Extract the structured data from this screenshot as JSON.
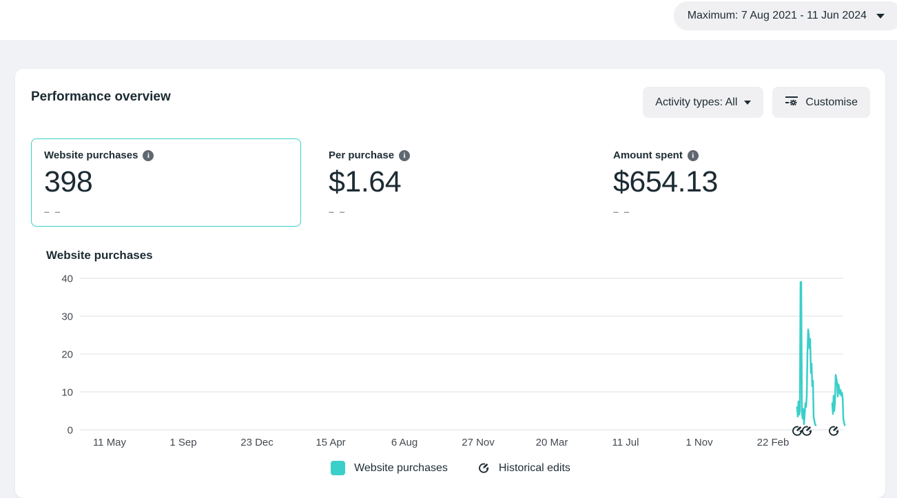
{
  "topbar": {
    "date_range": "Maximum: 7 Aug 2021 - 11 Jun 2024"
  },
  "panel": {
    "title": "Performance overview",
    "activity_types_button": "Activity types: All",
    "customise_button": "Customise"
  },
  "metrics": [
    {
      "label": "Website purchases",
      "value": "398",
      "sub": "– –",
      "selected": true
    },
    {
      "label": "Per purchase",
      "value": "$1.64",
      "sub": "– –",
      "selected": false
    },
    {
      "label": "Amount spent",
      "value": "$654.13",
      "sub": "– –",
      "selected": false
    }
  ],
  "chart_data": {
    "type": "line",
    "title": "Website purchases",
    "xlabel": "",
    "ylabel": "",
    "ylim": [
      0,
      40
    ],
    "yticks": [
      0,
      10,
      20,
      30,
      40
    ],
    "xticklabels": [
      "11 May",
      "1 Sep",
      "23 Dec",
      "15 Apr",
      "6 Aug",
      "27 Nov",
      "20 Mar",
      "11 Jul",
      "1 Nov",
      "22 Feb"
    ],
    "date_range": "7 Aug 2021 - 11 Jun 2024",
    "grid": true,
    "legend_position": "bottom-center",
    "series_name": "Website purchases",
    "colors": {
      "line": "#3acfc9",
      "grid": "#e2e5e9",
      "tick": "#444950"
    },
    "note": "No purchase data before Apr 2024; activity concentrated at far right of range",
    "segments": [
      {
        "x_start": 0.9395,
        "x_step": 0.000903,
        "values": [
          6,
          3.5,
          7.5,
          4,
          5,
          39,
          39,
          4.5,
          3,
          5.5,
          1.5,
          4,
          7,
          6,
          9,
          20,
          26.5,
          25,
          21.5,
          24,
          15,
          17.5,
          11.5,
          13,
          3.5,
          2.5,
          1.5,
          1.2
        ]
      },
      {
        "x_start": 0.9856,
        "x_step": 0.000903,
        "values": [
          7,
          4.2,
          9,
          5,
          7.5,
          14.5,
          13.5,
          12.5,
          8.8,
          12,
          11,
          9.5,
          10.5,
          9,
          9.8,
          8.5,
          3,
          2,
          1.2
        ]
      }
    ],
    "edit_markers_x": [
      0.9395,
      0.9521,
      0.9874
    ],
    "legend": [
      {
        "label": "Website purchases",
        "type": "swatch"
      },
      {
        "label": "Historical edits",
        "type": "edit-icon"
      }
    ]
  }
}
